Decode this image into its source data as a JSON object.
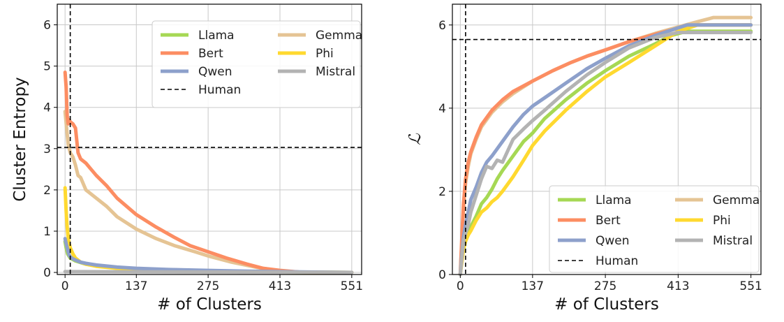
{
  "chart_data": [
    {
      "type": "line",
      "xlabel": "# of Clusters",
      "ylabel": "Cluster Entropy",
      "xlim": [
        -15,
        570
      ],
      "ylim": [
        -0.05,
        6.5
      ],
      "xticks": [
        0,
        137,
        275,
        413,
        551
      ],
      "yticks": [
        0,
        1,
        2,
        3,
        4,
        5,
        6
      ],
      "grid": true,
      "legend": {
        "placement": "top-right",
        "columns": 2
      },
      "reference_lines": {
        "name": "Human",
        "x": 10,
        "y": 3.03
      },
      "series": [
        {
          "name": "Llama",
          "color": "#a6d854",
          "x": [
            0,
            2,
            5,
            10,
            20,
            40,
            80,
            150,
            275,
            413,
            551
          ],
          "y": [
            0.75,
            0.6,
            0.45,
            0.35,
            0.28,
            0.2,
            0.14,
            0.08,
            0.03,
            0.01,
            0.0
          ]
        },
        {
          "name": "Gemma",
          "color": "#e5c494",
          "x": [
            0,
            3,
            6,
            10,
            15,
            20,
            25,
            30,
            40,
            60,
            80,
            100,
            137,
            175,
            210,
            250,
            275,
            320,
            370,
            413,
            450,
            500,
            551
          ],
          "y": [
            3.9,
            3.5,
            3.1,
            2.9,
            2.8,
            2.6,
            2.35,
            2.3,
            2.0,
            1.8,
            1.6,
            1.35,
            1.05,
            0.82,
            0.65,
            0.5,
            0.4,
            0.25,
            0.12,
            0.04,
            0.01,
            0.0,
            0.0
          ]
        },
        {
          "name": "Bert",
          "color": "#fc8d62",
          "x": [
            0,
            2,
            4,
            6,
            8,
            10,
            15,
            20,
            25,
            30,
            40,
            50,
            60,
            80,
            100,
            137,
            175,
            210,
            240,
            275,
            310,
            350,
            380,
            413,
            450,
            500,
            551
          ],
          "y": [
            4.85,
            4.5,
            3.8,
            3.6,
            3.7,
            3.65,
            3.6,
            3.5,
            2.9,
            2.75,
            2.65,
            2.5,
            2.35,
            2.1,
            1.8,
            1.4,
            1.1,
            0.85,
            0.65,
            0.5,
            0.35,
            0.2,
            0.1,
            0.05,
            0.01,
            0.0,
            0.0
          ]
        },
        {
          "name": "Phi",
          "color": "#ffd92f",
          "x": [
            0,
            2,
            4,
            6,
            8,
            10,
            15,
            20,
            30,
            40,
            60,
            100,
            137,
            200,
            275,
            413,
            551
          ],
          "y": [
            2.05,
            1.5,
            1.1,
            0.85,
            0.7,
            0.6,
            0.45,
            0.35,
            0.25,
            0.2,
            0.15,
            0.1,
            0.07,
            0.04,
            0.02,
            0.01,
            0.0
          ]
        },
        {
          "name": "Qwen",
          "color": "#8da0cb",
          "x": [
            0,
            2,
            4,
            6,
            8,
            10,
            15,
            20,
            30,
            40,
            60,
            100,
            137,
            200,
            275,
            350,
            413,
            480,
            551
          ],
          "y": [
            0.82,
            0.7,
            0.6,
            0.5,
            0.42,
            0.38,
            0.33,
            0.3,
            0.25,
            0.22,
            0.18,
            0.13,
            0.1,
            0.07,
            0.05,
            0.03,
            0.02,
            0.01,
            0.0
          ]
        },
        {
          "name": "Mistral",
          "color": "#b3b3b3",
          "x": [
            0,
            551
          ],
          "y": [
            0.02,
            0.0
          ]
        }
      ]
    },
    {
      "type": "line",
      "xlabel": "# of Clusters",
      "ylabel": "ℒ",
      "xlim": [
        -15,
        570
      ],
      "ylim": [
        0,
        6.5
      ],
      "xticks": [
        0,
        137,
        275,
        413,
        551
      ],
      "yticks": [
        0,
        2,
        4,
        6
      ],
      "grid": true,
      "legend": {
        "placement": "bottom-right",
        "columns": 2
      },
      "reference_lines": {
        "name": "Human",
        "x": 10,
        "y": 5.65
      },
      "series": [
        {
          "name": "Llama",
          "color": "#a6d854",
          "x": [
            0,
            3,
            6,
            10,
            15,
            20,
            30,
            40,
            50,
            60,
            70,
            80,
            100,
            120,
            137,
            160,
            200,
            240,
            275,
            320,
            370,
            400,
            430,
            470,
            551
          ],
          "y": [
            0,
            0.4,
            0.8,
            0.9,
            1.0,
            1.15,
            1.4,
            1.7,
            1.85,
            2.05,
            2.3,
            2.5,
            2.85,
            3.2,
            3.4,
            3.75,
            4.2,
            4.6,
            4.9,
            5.25,
            5.55,
            5.75,
            5.85,
            5.85,
            5.85
          ]
        },
        {
          "name": "Gemma",
          "color": "#e5c494",
          "x": [
            0,
            3,
            6,
            10,
            15,
            20,
            30,
            40,
            60,
            80,
            100,
            137,
            175,
            210,
            240,
            275,
            320,
            370,
            413,
            450,
            480,
            500,
            551
          ],
          "y": [
            0,
            0.8,
            1.6,
            2.2,
            2.6,
            2.9,
            3.25,
            3.55,
            3.9,
            4.15,
            4.35,
            4.65,
            4.9,
            5.1,
            5.25,
            5.4,
            5.6,
            5.8,
            5.95,
            6.08,
            6.18,
            6.18,
            6.18
          ]
        },
        {
          "name": "Bert",
          "color": "#fc8d62",
          "x": [
            0,
            3,
            6,
            10,
            15,
            20,
            30,
            40,
            60,
            80,
            100,
            137,
            175,
            210,
            240,
            275,
            320,
            370,
            413,
            450,
            500,
            551
          ],
          "y": [
            0,
            0.9,
            1.7,
            2.3,
            2.7,
            2.95,
            3.3,
            3.6,
            3.95,
            4.2,
            4.4,
            4.65,
            4.9,
            5.1,
            5.25,
            5.4,
            5.6,
            5.78,
            5.92,
            6.0,
            6.0,
            6.0
          ]
        },
        {
          "name": "Phi",
          "color": "#ffd92f",
          "x": [
            0,
            3,
            6,
            10,
            15,
            20,
            30,
            40,
            50,
            60,
            70,
            80,
            100,
            120,
            137,
            160,
            200,
            240,
            275,
            320,
            370,
            413,
            450,
            500,
            551
          ],
          "y": [
            0,
            0.3,
            0.6,
            0.8,
            0.95,
            1.05,
            1.3,
            1.5,
            1.6,
            1.75,
            1.85,
            2.0,
            2.35,
            2.75,
            3.1,
            3.45,
            3.95,
            4.4,
            4.75,
            5.1,
            5.5,
            5.85,
            6.0,
            6.0,
            6.0
          ]
        },
        {
          "name": "Qwen",
          "color": "#8da0cb",
          "x": [
            0,
            3,
            6,
            10,
            15,
            20,
            30,
            40,
            50,
            60,
            80,
            100,
            120,
            137,
            160,
            200,
            240,
            275,
            320,
            370,
            413,
            430,
            470,
            551
          ],
          "y": [
            0,
            0.5,
            0.9,
            1.2,
            1.5,
            1.8,
            2.1,
            2.45,
            2.7,
            2.85,
            3.2,
            3.55,
            3.85,
            4.05,
            4.25,
            4.6,
            4.95,
            5.2,
            5.5,
            5.75,
            5.93,
            6.0,
            6.0,
            6.0
          ]
        },
        {
          "name": "Mistral",
          "color": "#b3b3b3",
          "x": [
            0,
            3,
            6,
            10,
            15,
            20,
            30,
            40,
            50,
            60,
            70,
            80,
            100,
            120,
            137,
            160,
            200,
            240,
            275,
            320,
            370,
            413,
            450,
            551
          ],
          "y": [
            0,
            0.4,
            0.8,
            1.0,
            1.2,
            1.5,
            1.9,
            2.3,
            2.6,
            2.55,
            2.75,
            2.7,
            3.25,
            3.5,
            3.7,
            3.95,
            4.4,
            4.8,
            5.1,
            5.45,
            5.7,
            5.82,
            5.82,
            5.82
          ]
        }
      ]
    }
  ]
}
